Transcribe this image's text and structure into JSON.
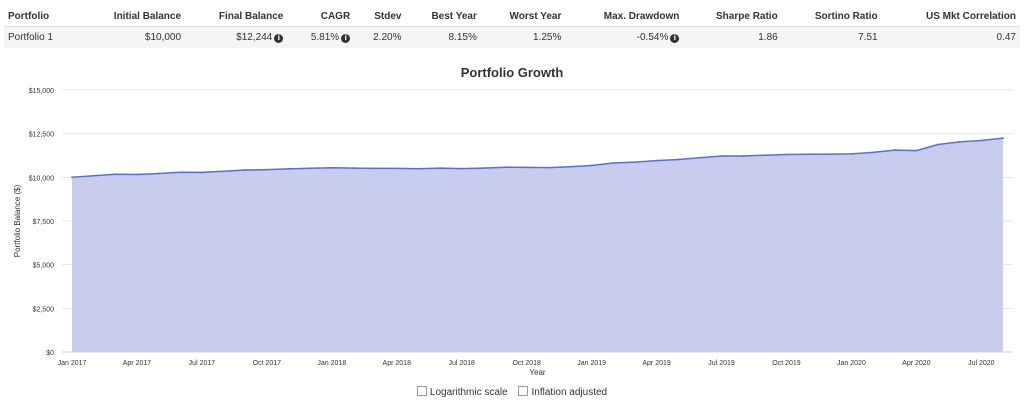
{
  "table": {
    "headers": [
      "Portfolio",
      "Initial Balance",
      "Final Balance",
      "CAGR",
      "Stdev",
      "Best Year",
      "Worst Year",
      "Max. Drawdown",
      "Sharpe Ratio",
      "Sortino Ratio",
      "US Mkt Correlation"
    ],
    "rows": [
      {
        "portfolio": "Portfolio 1",
        "initial_balance": "$10,000",
        "final_balance": "$12,244",
        "cagr": "5.81%",
        "stdev": "2.20%",
        "best_year": "8.15%",
        "worst_year": "1.25%",
        "max_drawdown": "-0.54%",
        "sharpe_ratio": "1.86",
        "sortino_ratio": "7.51",
        "us_mkt_correlation": "0.47"
      }
    ]
  },
  "chart_data": {
    "type": "area",
    "title": "Portfolio Growth",
    "xlabel": "Year",
    "ylabel": "Portfolio Balance ($)",
    "ylim": [
      0,
      15000
    ],
    "y_ticks": [
      "$0",
      "$2,500",
      "$5,000",
      "$7,500",
      "$10,000",
      "$12,500",
      "$15,000"
    ],
    "x_ticks": [
      "Jan 2017",
      "Apr 2017",
      "Jul 2017",
      "Oct 2017",
      "Jan 2018",
      "Apr 2018",
      "Jul 2018",
      "Oct 2018",
      "Jan 2019",
      "Apr 2019",
      "Jul 2019",
      "Oct 2019",
      "Jan 2020",
      "Apr 2020",
      "Jul 2020"
    ],
    "x": [
      "Jan 2017",
      "Feb 2017",
      "Mar 2017",
      "Apr 2017",
      "May 2017",
      "Jun 2017",
      "Jul 2017",
      "Aug 2017",
      "Sep 2017",
      "Oct 2017",
      "Nov 2017",
      "Dec 2017",
      "Jan 2018",
      "Feb 2018",
      "Mar 2018",
      "Apr 2018",
      "May 2018",
      "Jun 2018",
      "Jul 2018",
      "Aug 2018",
      "Sep 2018",
      "Oct 2018",
      "Nov 2018",
      "Dec 2018",
      "Jan 2019",
      "Feb 2019",
      "Mar 2019",
      "Apr 2019",
      "May 2019",
      "Jun 2019",
      "Jul 2019",
      "Aug 2019",
      "Sep 2019",
      "Oct 2019",
      "Nov 2019",
      "Dec 2019",
      "Jan 2020",
      "Feb 2020",
      "Mar 2020",
      "Apr 2020",
      "May 2020",
      "Jun 2020",
      "Jul 2020",
      "Aug 2020"
    ],
    "series": [
      {
        "values": [
          10000,
          10090,
          10180,
          10160,
          10220,
          10290,
          10280,
          10350,
          10420,
          10440,
          10480,
          10520,
          10550,
          10530,
          10510,
          10510,
          10490,
          10530,
          10500,
          10530,
          10580,
          10570,
          10560,
          10610,
          10680,
          10820,
          10870,
          10960,
          11020,
          11120,
          11220,
          11220,
          11270,
          11310,
          11320,
          11330,
          11340,
          11430,
          11560,
          11530,
          11880,
          12030,
          12110,
          12244
        ]
      }
    ],
    "grid": true,
    "legend": "none",
    "colors": {
      "fill": "#c8cdee",
      "line": "#5a6fcf",
      "grid": "#e6e6e6"
    }
  },
  "options": {
    "log_scale_label": "Logarithmic scale",
    "inflation_label": "Inflation adjusted"
  }
}
